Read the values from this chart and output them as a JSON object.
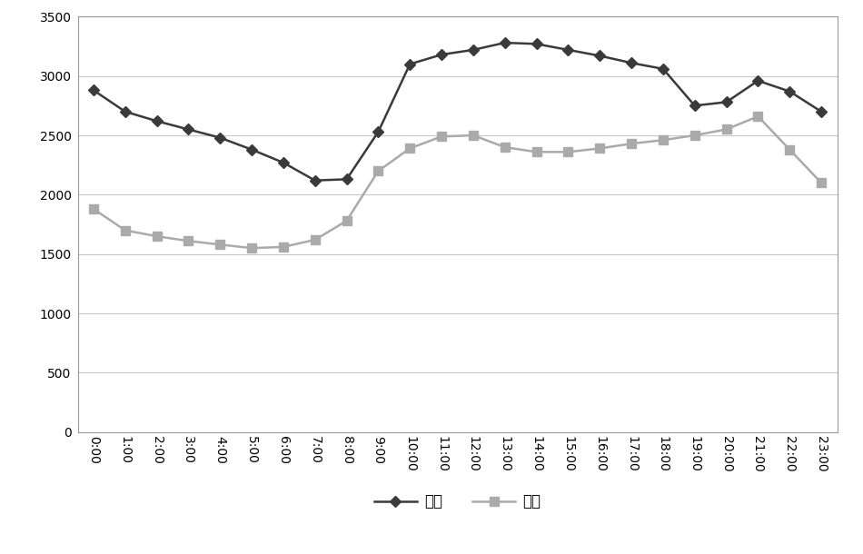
{
  "hours": [
    "0:00",
    "1:00",
    "2:00",
    "3:00",
    "4:00",
    "5:00",
    "6:00",
    "7:00",
    "8:00",
    "9:00",
    "10:00",
    "11:00",
    "12:00",
    "13:00",
    "14:00",
    "15:00",
    "16:00",
    "17:00",
    "18:00",
    "19:00",
    "20:00",
    "21:00",
    "22:00",
    "23:00"
  ],
  "summer_vals": [
    2880,
    2700,
    2620,
    2550,
    2480,
    2380,
    2270,
    2120,
    2130,
    2530,
    3100,
    3180,
    3220,
    3280,
    3270,
    3220,
    3170,
    3110,
    3060,
    2750,
    2780,
    2960,
    2870,
    2700
  ],
  "winter_vals": [
    1880,
    1700,
    1650,
    1610,
    1580,
    1550,
    1560,
    1620,
    1780,
    2200,
    2390,
    2490,
    2500,
    2400,
    2360,
    2360,
    2390,
    2430,
    2460,
    2500,
    2550,
    2660,
    2380,
    2100
  ],
  "summer_color": "#3a3a3a",
  "winter_color": "#aaaaaa",
  "background_color": "#ffffff",
  "ylim": [
    0,
    3500
  ],
  "yticks": [
    0,
    500,
    1000,
    1500,
    2000,
    2500,
    3000,
    3500
  ],
  "legend_summer": "夏季",
  "legend_winter": "冬季",
  "grid_color": "#c8c8c8"
}
